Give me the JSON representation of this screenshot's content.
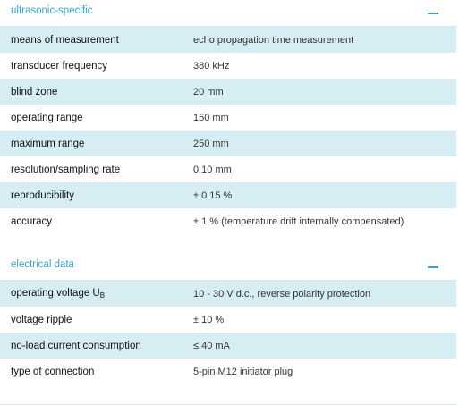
{
  "sections": [
    {
      "title": "ultrasonic-specific",
      "rows": [
        {
          "label": "means of measurement",
          "value": "echo propagation time measurement"
        },
        {
          "label": "transducer frequency",
          "value": "380 kHz"
        },
        {
          "label": "blind zone",
          "value": "20 mm"
        },
        {
          "label": "operating range",
          "value": "150 mm"
        },
        {
          "label": "maximum range",
          "value": "250 mm"
        },
        {
          "label": "resolution/sampling rate",
          "value": "0.10 mm"
        },
        {
          "label": "reproducibility",
          "value": "± 0.15 %"
        },
        {
          "label": "accuracy",
          "value": "± 1 % (temperature drift internally compensated)"
        }
      ]
    },
    {
      "title": "electrical data",
      "rows": [
        {
          "label": "operating voltage U",
          "label_sub": "B",
          "value": "10 - 30 V d.c., reverse polarity protection"
        },
        {
          "label": "voltage ripple",
          "value": "± 10 %"
        },
        {
          "label": "no-load current consumption",
          "value": "≤ 40 mA"
        },
        {
          "label": "type of connection",
          "value": "5-pin M12 initiator plug"
        }
      ]
    }
  ],
  "colors": {
    "accent": "#3aa3c9",
    "row_shade": "#d6edf4"
  }
}
